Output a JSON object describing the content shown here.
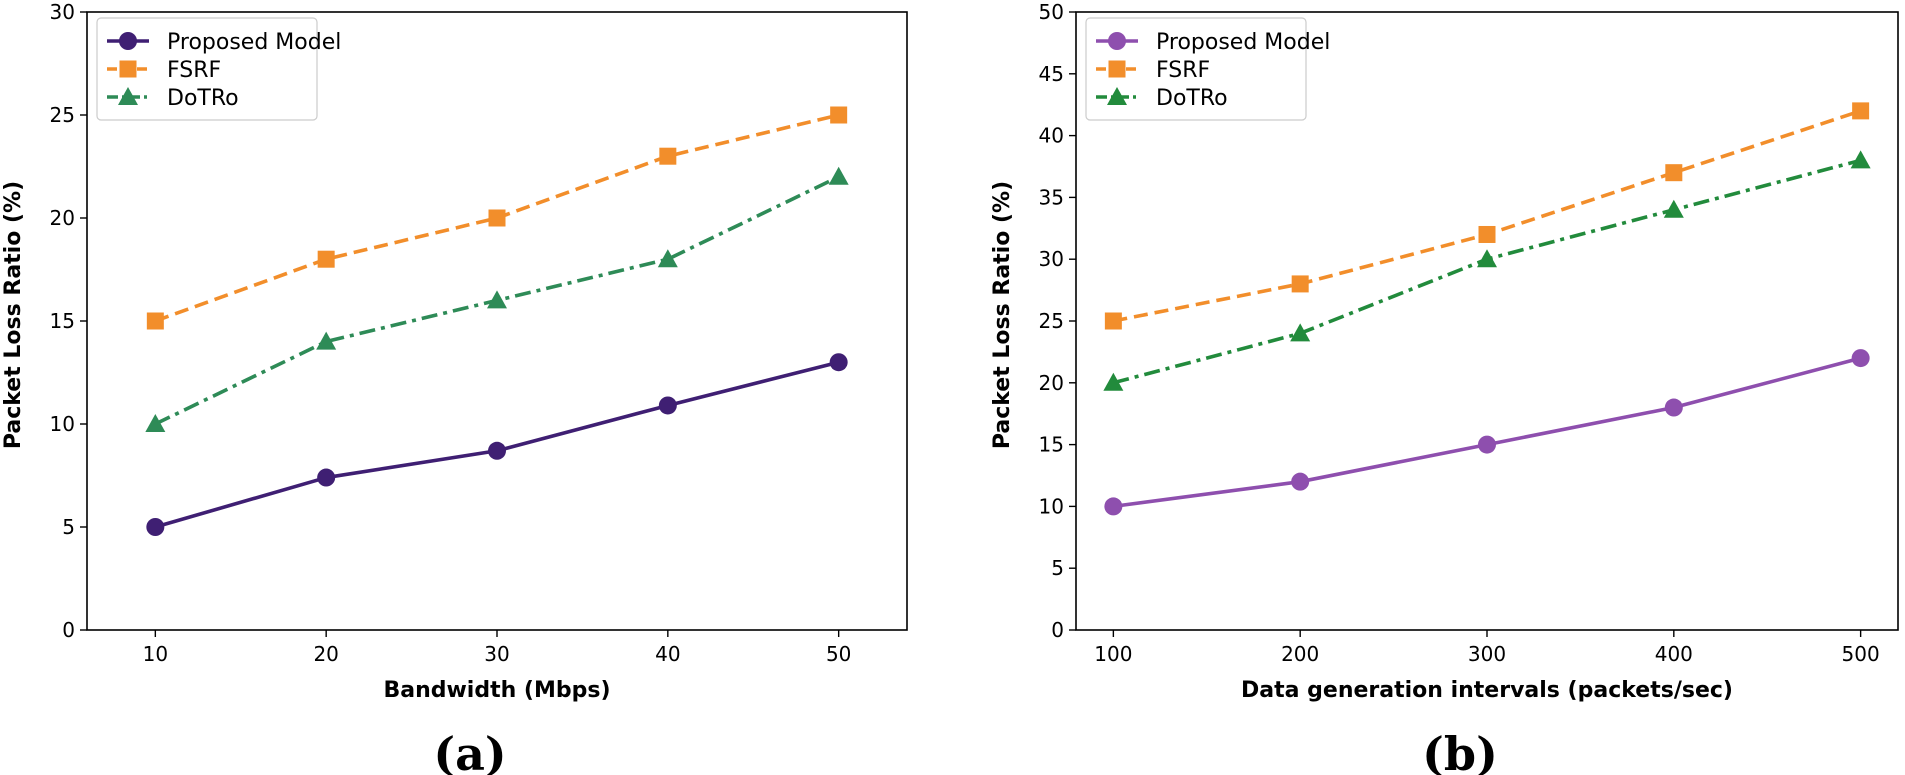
{
  "chart_data": [
    {
      "type": "line",
      "panel_label": "(a)",
      "xlabel": "Bandwidth (Mbps)",
      "ylabel": "Packet Loss Ratio (%)",
      "x": [
        10,
        20,
        30,
        40,
        50
      ],
      "xlim": [
        6,
        54
      ],
      "ylim": [
        0,
        30
      ],
      "xticks": [
        10,
        20,
        30,
        40,
        50
      ],
      "yticks": [
        0,
        5,
        10,
        15,
        20,
        25,
        30
      ],
      "legend_position": "top-left",
      "series": [
        {
          "name": "Proposed Model",
          "values": [
            5,
            7.4,
            8.7,
            10.9,
            13
          ],
          "color": "#3f1f73",
          "marker": "circle",
          "dash": "solid"
        },
        {
          "name": "FSRF",
          "values": [
            15,
            18,
            20,
            23,
            25
          ],
          "color": "#f28e2b",
          "marker": "square",
          "dash": "dashed"
        },
        {
          "name": "DoTRo",
          "values": [
            10,
            14,
            16,
            18,
            22
          ],
          "color": "#2e8b57",
          "marker": "triangle",
          "dash": "dashdot"
        }
      ]
    },
    {
      "type": "line",
      "panel_label": "(b)",
      "xlabel": "Data generation intervals (packets/sec)",
      "ylabel": "Packet Loss Ratio (%)",
      "x": [
        100,
        200,
        300,
        400,
        500
      ],
      "xlim": [
        80,
        520
      ],
      "ylim": [
        0,
        50
      ],
      "xticks": [
        100,
        200,
        300,
        400,
        500
      ],
      "yticks": [
        0,
        5,
        10,
        15,
        20,
        25,
        30,
        35,
        40,
        45,
        50
      ],
      "legend_position": "top-left",
      "series": [
        {
          "name": "Proposed Model",
          "values": [
            10,
            12,
            15,
            18,
            22
          ],
          "color": "#8e4fae",
          "marker": "circle",
          "dash": "solid"
        },
        {
          "name": "FSRF",
          "values": [
            25,
            28,
            32,
            37,
            42
          ],
          "color": "#f28e2b",
          "marker": "square",
          "dash": "dashed"
        },
        {
          "name": "DoTRo",
          "values": [
            20,
            24,
            30,
            34,
            38
          ],
          "color": "#228b3c",
          "marker": "triangle",
          "dash": "dashdot"
        }
      ]
    }
  ]
}
